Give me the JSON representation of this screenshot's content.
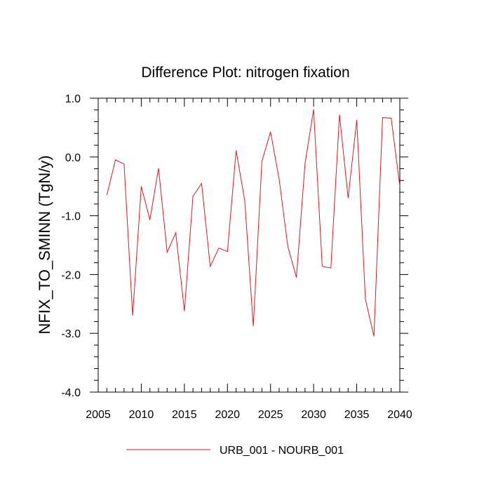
{
  "chart_data": {
    "type": "line",
    "title": "Difference Plot: nitrogen fixation",
    "xlabel": "",
    "ylabel": "NFIX_TO_SMINN  (TgN/y)",
    "xlim": [
      2005,
      2040
    ],
    "ylim": [
      -4.0,
      1.0
    ],
    "xticks": [
      2005,
      2010,
      2015,
      2020,
      2025,
      2030,
      2035,
      2040
    ],
    "xtick_labels": [
      "2005",
      "2010",
      "2015",
      "2020",
      "2025",
      "2030",
      "2035",
      "2040"
    ],
    "yticks": [
      -4.0,
      -3.0,
      -2.0,
      -1.0,
      0.0,
      1.0
    ],
    "ytick_labels": [
      "-4.0",
      "-3.0",
      "-2.0",
      "-1.0",
      "0.0",
      "1.0"
    ],
    "grid": false,
    "legend_position": "bottom-center",
    "series": [
      {
        "name": "URB_001 - NOURB_001",
        "color": "#e8141b",
        "x": [
          2006,
          2007,
          2008,
          2009,
          2010,
          2011,
          2012,
          2013,
          2014,
          2015,
          2016,
          2017,
          2018,
          2019,
          2020,
          2021,
          2022,
          2023,
          2024,
          2025,
          2026,
          2027,
          2028,
          2029,
          2030,
          2031,
          2032,
          2033,
          2034,
          2035,
          2036,
          2037,
          2038,
          2039,
          2040
        ],
        "values": [
          -0.65,
          -0.05,
          -0.12,
          -2.7,
          -0.5,
          -1.07,
          -0.19,
          -1.62,
          -1.29,
          -2.62,
          -0.67,
          -0.45,
          -1.86,
          -1.55,
          -1.61,
          0.11,
          -0.74,
          -2.88,
          -0.07,
          0.43,
          -0.38,
          -1.52,
          -2.05,
          -0.11,
          0.81,
          -1.86,
          -1.89,
          0.72,
          -0.7,
          0.63,
          -2.42,
          -3.05,
          0.67,
          0.66,
          -0.5
        ]
      }
    ]
  }
}
